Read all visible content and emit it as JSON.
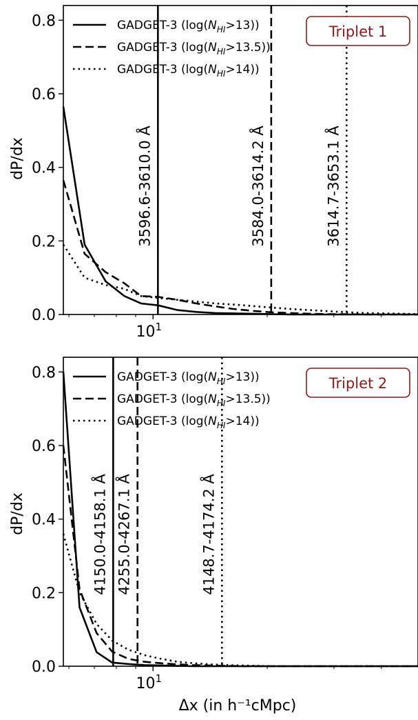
{
  "figure": {
    "xlabel": "Δx (in h⁻¹cMpc)"
  },
  "chart_data": [
    {
      "type": "line",
      "badge": "Triplet 1",
      "ylabel": "dP/dx",
      "xscale": "log",
      "xlim": [
        5.8,
        50
      ],
      "ylim": [
        0,
        0.84
      ],
      "yticks": [
        0.0,
        0.2,
        0.4,
        0.6,
        0.8
      ],
      "ytick_labels": [
        "0.0",
        "0.2",
        "0.4",
        "0.6",
        "0.8"
      ],
      "xticks": [
        10
      ],
      "xtick_labels": [
        "10"
      ],
      "legend_position": "top-left",
      "series": [
        {
          "name": "GADGET-3 (log(N_HI>13))",
          "legend_prefix": "GADGET-3 (log(",
          "legend_sub": "HI",
          "legend_suffix": ">13))",
          "style": "solid",
          "x": [
            5.8,
            6.6,
            7.5,
            8.4,
            9.3,
            10.3,
            11.6,
            13.0,
            14.6,
            16.3,
            18.3,
            20.5,
            23.0,
            25.8,
            28.9,
            32.4,
            36.3,
            40.7,
            45.6,
            50.0
          ],
          "y": [
            0.565,
            0.19,
            0.09,
            0.05,
            0.03,
            0.025,
            0.012,
            0.007,
            0.004,
            0.003,
            0.002,
            0.001,
            0.0,
            0.0,
            0.0,
            0.0,
            0.0,
            0.0,
            0.0,
            0.0
          ]
        },
        {
          "name": "GADGET-3 (log(N_HI>13.5))",
          "legend_prefix": "GADGET-3 (log(",
          "legend_sub": "HI",
          "legend_suffix": ">13.5))",
          "style": "dashed",
          "x": [
            5.8,
            6.6,
            7.5,
            8.4,
            9.3,
            10.3,
            11.6,
            13.0,
            14.6,
            16.3,
            18.3,
            20.5,
            23.0,
            25.8,
            28.9,
            32.4,
            36.3,
            40.7,
            45.6,
            50.0
          ],
          "y": [
            0.365,
            0.165,
            0.115,
            0.085,
            0.05,
            0.048,
            0.04,
            0.03,
            0.022,
            0.015,
            0.01,
            0.006,
            0.004,
            0.002,
            0.001,
            0.001,
            0.0,
            0.0,
            0.0,
            0.0
          ]
        },
        {
          "name": "GADGET-3 (log(N_HI>14))",
          "legend_prefix": "GADGET-3 (log(",
          "legend_sub": "HI",
          "legend_suffix": ">14))",
          "style": "dotted",
          "x": [
            5.8,
            6.6,
            7.5,
            8.4,
            9.3,
            10.3,
            11.6,
            13.0,
            14.6,
            16.3,
            18.3,
            20.5,
            23.0,
            25.8,
            28.9,
            32.4,
            36.3,
            40.7,
            45.6,
            50.0
          ],
          "y": [
            0.19,
            0.1,
            0.08,
            0.07,
            0.05,
            0.045,
            0.04,
            0.035,
            0.03,
            0.027,
            0.023,
            0.019,
            0.015,
            0.012,
            0.009,
            0.006,
            0.004,
            0.003,
            0.002,
            0.001
          ]
        }
      ],
      "vlines": [
        {
          "x": 10.3,
          "style": "solid",
          "label": "3596.6-3610.0 Å"
        },
        {
          "x": 20.5,
          "style": "dashed",
          "label": "3584.0-3614.2 Å"
        },
        {
          "x": 32.4,
          "style": "dotted",
          "label": "3614.7-3653.1 Å"
        }
      ]
    },
    {
      "type": "line",
      "badge": "Triplet 2",
      "ylabel": "dP/dx",
      "xscale": "log",
      "xlim": [
        5.8,
        50
      ],
      "ylim": [
        0,
        0.84
      ],
      "yticks": [
        0.0,
        0.2,
        0.4,
        0.6,
        0.8
      ],
      "ytick_labels": [
        "0.0",
        "0.2",
        "0.4",
        "0.6",
        "0.8"
      ],
      "xticks": [
        10
      ],
      "xtick_labels": [
        "10"
      ],
      "legend_position": "top-left",
      "series": [
        {
          "name": "GADGET-3 (log(N_HI>13))",
          "legend_prefix": "GADGET-3 (log(",
          "legend_sub": "HI",
          "legend_suffix": ">13))",
          "style": "solid",
          "x": [
            5.8,
            6.4,
            7.1,
            7.8,
            8.6,
            9.5,
            10.5,
            11.6,
            12.8,
            14.1,
            15.6,
            17.2,
            19.0,
            21.0,
            23.2,
            25.6,
            28.3,
            31.3,
            34.6,
            38.2,
            42.2,
            46.6,
            50.0
          ],
          "y": [
            0.8,
            0.16,
            0.038,
            0.01,
            0.006,
            0.003,
            0.002,
            0.001,
            0.0,
            0.0,
            0.0,
            0.0,
            0.0,
            0.0,
            0.0,
            0.0,
            0.0,
            0.0,
            0.0,
            0.0,
            0.0,
            0.0,
            0.0
          ]
        },
        {
          "name": "GADGET-3 (log(N_HI>13.5))",
          "legend_prefix": "GADGET-3 (log(",
          "legend_sub": "HI",
          "legend_suffix": ">13.5))",
          "style": "dashed",
          "x": [
            5.8,
            6.4,
            7.1,
            7.8,
            8.6,
            9.5,
            10.5,
            11.6,
            12.8,
            14.1,
            15.6,
            17.2,
            19.0,
            21.0,
            23.2,
            25.6,
            28.3,
            31.3,
            34.6,
            38.2,
            42.2,
            46.6,
            50.0
          ],
          "y": [
            0.6,
            0.21,
            0.09,
            0.04,
            0.02,
            0.012,
            0.008,
            0.005,
            0.003,
            0.002,
            0.001,
            0.0,
            0.0,
            0.0,
            0.0,
            0.0,
            0.0,
            0.0,
            0.0,
            0.0,
            0.0,
            0.0,
            0.0
          ]
        },
        {
          "name": "GADGET-3 (log(N_HI>14))",
          "legend_prefix": "GADGET-3 (log(",
          "legend_sub": "HI",
          "legend_suffix": ">14))",
          "style": "dotted",
          "x": [
            5.8,
            6.4,
            7.1,
            7.8,
            8.6,
            9.5,
            10.5,
            11.6,
            12.8,
            14.1,
            15.6,
            17.2,
            19.0,
            21.0,
            23.2,
            25.6,
            28.3,
            31.3,
            34.6,
            38.2,
            42.2,
            46.6,
            50.0
          ],
          "y": [
            0.36,
            0.2,
            0.115,
            0.07,
            0.045,
            0.03,
            0.02,
            0.012,
            0.008,
            0.005,
            0.003,
            0.002,
            0.001,
            0.0,
            0.0,
            0.0,
            0.0,
            0.0,
            0.0,
            0.0,
            0.0,
            0.0,
            0.0
          ]
        }
      ],
      "vlines": [
        {
          "x": 7.85,
          "style": "solid",
          "label": "4150.0-4158.1 Å"
        },
        {
          "x": 9.1,
          "style": "dashed",
          "label": "4255.0-4267.1 Å"
        },
        {
          "x": 15.2,
          "style": "dotted",
          "label": "4148.7-4174.2 Å"
        }
      ]
    }
  ]
}
